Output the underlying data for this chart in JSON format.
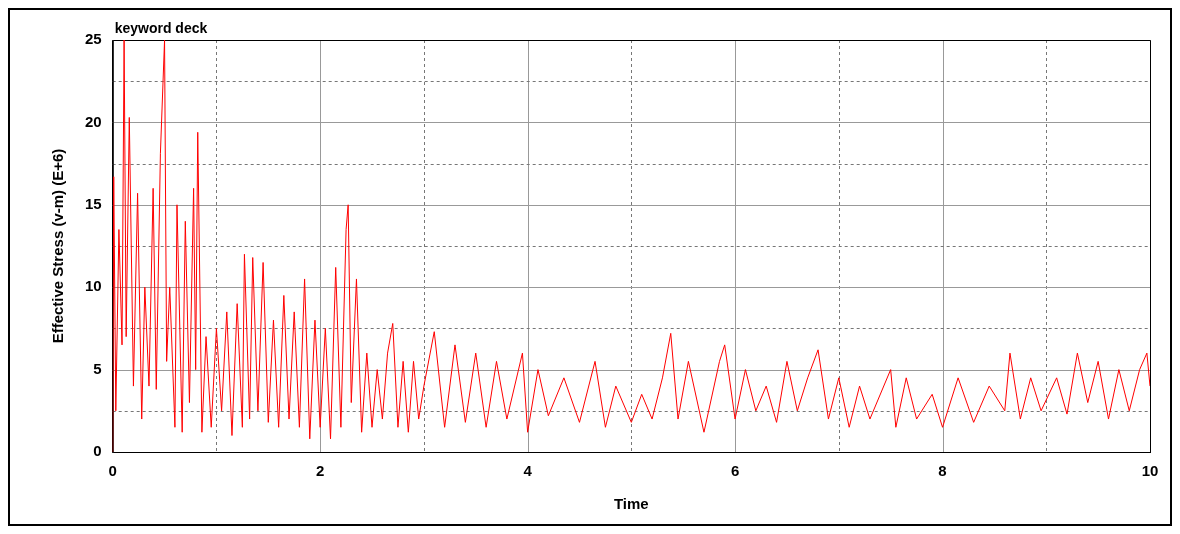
{
  "chart_data": {
    "type": "line",
    "title": "keyword deck",
    "xlabel": "Time",
    "ylabel": "Effective Stress (v-m) (E+6)",
    "xlim": [
      0,
      10
    ],
    "ylim": [
      0,
      25
    ],
    "xticks": [
      0,
      {
        "value": 1,
        "label": null
      },
      2,
      {
        "value": 3,
        "label": null
      },
      4,
      {
        "value": 5,
        "label": null
      },
      6,
      {
        "value": 7,
        "label": null
      },
      8,
      {
        "value": 9,
        "label": null
      },
      10
    ],
    "yticks": [
      0,
      {
        "value": 2.5,
        "label": null
      },
      5,
      {
        "value": 7.5,
        "label": null
      },
      10,
      {
        "value": 12.5,
        "label": null
      },
      15,
      {
        "value": 17.5,
        "label": null
      },
      20,
      {
        "value": 22.5,
        "label": null
      },
      25
    ],
    "grid": true,
    "legend": false,
    "marker": "none",
    "line_style": "solid",
    "series": [
      {
        "color": "#ff0000",
        "x": [
          0,
          0.01,
          0.03,
          0.06,
          0.09,
          0.11,
          0.13,
          0.16,
          0.2,
          0.24,
          0.28,
          0.31,
          0.35,
          0.39,
          0.42,
          0.46,
          0.5,
          0.52,
          0.55,
          0.6,
          0.62,
          0.67,
          0.7,
          0.74,
          0.78,
          0.8,
          0.82,
          0.86,
          0.9,
          0.95,
          1.0,
          1.05,
          1.1,
          1.15,
          1.2,
          1.25,
          1.27,
          1.32,
          1.35,
          1.4,
          1.45,
          1.5,
          1.55,
          1.6,
          1.65,
          1.7,
          1.75,
          1.8,
          1.85,
          1.9,
          1.95,
          2.0,
          2.05,
          2.1,
          2.15,
          2.2,
          2.25,
          2.27,
          2.3,
          2.35,
          2.4,
          2.45,
          2.5,
          2.55,
          2.6,
          2.65,
          2.7,
          2.75,
          2.8,
          2.85,
          2.9,
          2.95,
          3.0,
          3.1,
          3.2,
          3.3,
          3.4,
          3.5,
          3.6,
          3.7,
          3.8,
          3.95,
          4.0,
          4.1,
          4.2,
          4.35,
          4.5,
          4.65,
          4.75,
          4.85,
          5.0,
          5.1,
          5.2,
          5.3,
          5.38,
          5.45,
          5.55,
          5.7,
          5.85,
          5.9,
          6.0,
          6.1,
          6.2,
          6.3,
          6.4,
          6.5,
          6.6,
          6.7,
          6.8,
          6.9,
          7.0,
          7.1,
          7.2,
          7.3,
          7.5,
          7.55,
          7.65,
          7.75,
          7.9,
          8.0,
          8.15,
          8.3,
          8.45,
          8.6,
          8.65,
          8.75,
          8.85,
          8.95,
          9.1,
          9.2,
          9.3,
          9.4,
          9.5,
          9.6,
          9.7,
          9.8,
          9.9,
          9.97,
          10.0
        ],
        "values": [
          0,
          16.7,
          2.5,
          13.5,
          6.5,
          25,
          7,
          20.3,
          4,
          15.7,
          2,
          10,
          4,
          16,
          3.8,
          18.1,
          25,
          5.5,
          10,
          1.5,
          15,
          1.2,
          14,
          3,
          16,
          5,
          19.4,
          1.2,
          7,
          1.5,
          7.5,
          2.5,
          8.5,
          1,
          9,
          1.5,
          12,
          2,
          11.8,
          2.5,
          11.5,
          1.8,
          8,
          1.5,
          9.5,
          2,
          8.5,
          1.5,
          10.5,
          0.8,
          8,
          1.5,
          7.5,
          0.8,
          11.2,
          1.5,
          13.5,
          15,
          3,
          10.5,
          1.2,
          6,
          1.5,
          5,
          2,
          6,
          7.8,
          1.5,
          5.5,
          1.2,
          5.5,
          2,
          4,
          7.3,
          1.5,
          6.5,
          1.8,
          6,
          1.5,
          5.5,
          2,
          6,
          1.2,
          5,
          2.2,
          4.5,
          1.8,
          5.5,
          1.5,
          4,
          1.8,
          3.5,
          2,
          4.5,
          7.2,
          2,
          5.5,
          1.2,
          5.5,
          6.5,
          2,
          5,
          2.5,
          4,
          1.8,
          5.5,
          2.5,
          4.5,
          6.2,
          2,
          4.5,
          1.5,
          4,
          2,
          5,
          1.5,
          4.5,
          2,
          3.5,
          1.5,
          4.5,
          1.8,
          4,
          2.5,
          6,
          2,
          4.5,
          2.5,
          4.5,
          2.3,
          6,
          3,
          5.5,
          2,
          5,
          2.5,
          5,
          6,
          4
        ]
      }
    ]
  }
}
